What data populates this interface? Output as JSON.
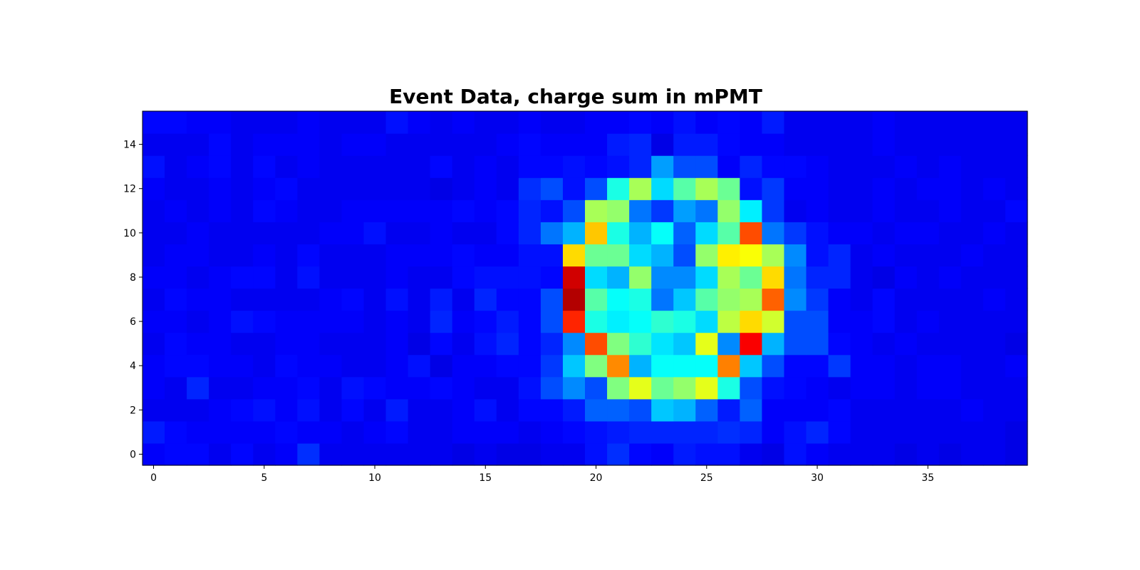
{
  "chart_data": {
    "type": "heatmap",
    "title": "Event Data, charge sum in mPMT",
    "xlabel": "",
    "ylabel": "",
    "x_range": [
      -0.5,
      39.5
    ],
    "y_range": [
      -0.5,
      15.5
    ],
    "y_origin": "bottom",
    "xticks": [
      0,
      5,
      10,
      15,
      20,
      25,
      30,
      35
    ],
    "yticks": [
      0,
      2,
      4,
      6,
      8,
      10,
      12,
      14
    ],
    "colormap": "jet",
    "value_range": [
      0,
      1
    ],
    "grid": false,
    "legend": "none",
    "n_cols": 40,
    "n_rows": 16,
    "z": [
      [
        0.12,
        0.13,
        0.13,
        0.11,
        0.13,
        0.11,
        0.12,
        0.17,
        0.11,
        0.11,
        0.11,
        0.11,
        0.11,
        0.11,
        0.1,
        0.11,
        0.1,
        0.1,
        0.11,
        0.11,
        0.14,
        0.17,
        0.13,
        0.12,
        0.15,
        0.14,
        0.14,
        0.11,
        0.1,
        0.14,
        0.12,
        0.11,
        0.11,
        0.11,
        0.1,
        0.11,
        0.1,
        0.11,
        0.11,
        0.1
      ],
      [
        0.15,
        0.13,
        0.12,
        0.12,
        0.12,
        0.12,
        0.13,
        0.12,
        0.12,
        0.11,
        0.12,
        0.13,
        0.11,
        0.11,
        0.12,
        0.12,
        0.12,
        0.11,
        0.12,
        0.13,
        0.14,
        0.15,
        0.16,
        0.16,
        0.16,
        0.16,
        0.17,
        0.16,
        0.12,
        0.14,
        0.16,
        0.13,
        0.11,
        0.11,
        0.11,
        0.11,
        0.11,
        0.11,
        0.11,
        0.1
      ],
      [
        0.11,
        0.11,
        0.11,
        0.12,
        0.13,
        0.14,
        0.12,
        0.14,
        0.11,
        0.13,
        0.11,
        0.15,
        0.11,
        0.11,
        0.12,
        0.14,
        0.11,
        0.13,
        0.13,
        0.15,
        0.22,
        0.22,
        0.2,
        0.32,
        0.3,
        0.22,
        0.15,
        0.22,
        0.12,
        0.12,
        0.12,
        0.13,
        0.11,
        0.11,
        0.11,
        0.11,
        0.11,
        0.12,
        0.11,
        0.11
      ],
      [
        0.12,
        0.11,
        0.16,
        0.11,
        0.11,
        0.12,
        0.12,
        0.13,
        0.11,
        0.14,
        0.13,
        0.12,
        0.12,
        0.13,
        0.12,
        0.11,
        0.11,
        0.14,
        0.2,
        0.26,
        0.2,
        0.5,
        0.6,
        0.48,
        0.52,
        0.6,
        0.4,
        0.2,
        0.14,
        0.13,
        0.12,
        0.11,
        0.12,
        0.12,
        0.11,
        0.12,
        0.12,
        0.11,
        0.11,
        0.11
      ],
      [
        0.12,
        0.13,
        0.13,
        0.12,
        0.12,
        0.11,
        0.13,
        0.12,
        0.12,
        0.11,
        0.11,
        0.12,
        0.14,
        0.1,
        0.12,
        0.12,
        0.13,
        0.13,
        0.18,
        0.32,
        0.5,
        0.74,
        0.3,
        0.38,
        0.38,
        0.38,
        0.75,
        0.32,
        0.2,
        0.13,
        0.13,
        0.18,
        0.12,
        0.12,
        0.11,
        0.12,
        0.12,
        0.11,
        0.11,
        0.12
      ],
      [
        0.11,
        0.13,
        0.12,
        0.12,
        0.11,
        0.11,
        0.12,
        0.12,
        0.11,
        0.11,
        0.11,
        0.12,
        0.1,
        0.13,
        0.11,
        0.14,
        0.16,
        0.13,
        0.16,
        0.26,
        0.8,
        0.5,
        0.42,
        0.35,
        0.32,
        0.6,
        0.26,
        0.88,
        0.3,
        0.2,
        0.2,
        0.13,
        0.12,
        0.11,
        0.12,
        0.11,
        0.11,
        0.11,
        0.11,
        0.1
      ],
      [
        0.12,
        0.12,
        0.11,
        0.12,
        0.14,
        0.13,
        0.12,
        0.12,
        0.12,
        0.12,
        0.11,
        0.12,
        0.11,
        0.16,
        0.12,
        0.13,
        0.15,
        0.13,
        0.2,
        0.84,
        0.4,
        0.36,
        0.38,
        0.42,
        0.4,
        0.34,
        0.56,
        0.66,
        0.58,
        0.2,
        0.2,
        0.12,
        0.12,
        0.13,
        0.11,
        0.12,
        0.11,
        0.11,
        0.11,
        0.11
      ],
      [
        0.11,
        0.13,
        0.12,
        0.12,
        0.11,
        0.11,
        0.11,
        0.11,
        0.12,
        0.13,
        0.11,
        0.14,
        0.11,
        0.15,
        0.11,
        0.16,
        0.13,
        0.13,
        0.2,
        0.95,
        0.46,
        0.38,
        0.4,
        0.24,
        0.32,
        0.46,
        0.52,
        0.54,
        0.78,
        0.26,
        0.18,
        0.12,
        0.11,
        0.13,
        0.11,
        0.11,
        0.11,
        0.11,
        0.12,
        0.11
      ],
      [
        0.12,
        0.12,
        0.11,
        0.12,
        0.13,
        0.13,
        0.11,
        0.14,
        0.11,
        0.11,
        0.11,
        0.12,
        0.11,
        0.11,
        0.13,
        0.14,
        0.14,
        0.14,
        0.13,
        0.92,
        0.34,
        0.3,
        0.52,
        0.26,
        0.26,
        0.34,
        0.54,
        0.48,
        0.66,
        0.24,
        0.16,
        0.16,
        0.11,
        0.1,
        0.12,
        0.11,
        0.12,
        0.11,
        0.11,
        0.11
      ],
      [
        0.11,
        0.12,
        0.12,
        0.11,
        0.11,
        0.12,
        0.11,
        0.13,
        0.11,
        0.11,
        0.11,
        0.12,
        0.12,
        0.12,
        0.13,
        0.12,
        0.12,
        0.14,
        0.14,
        0.66,
        0.48,
        0.48,
        0.34,
        0.3,
        0.2,
        0.52,
        0.64,
        0.62,
        0.54,
        0.26,
        0.14,
        0.16,
        0.11,
        0.12,
        0.11,
        0.11,
        0.11,
        0.12,
        0.11,
        0.11
      ],
      [
        0.11,
        0.11,
        0.12,
        0.11,
        0.11,
        0.11,
        0.11,
        0.11,
        0.12,
        0.12,
        0.14,
        0.11,
        0.11,
        0.12,
        0.11,
        0.11,
        0.13,
        0.16,
        0.24,
        0.3,
        0.68,
        0.4,
        0.3,
        0.38,
        0.22,
        0.34,
        0.46,
        0.8,
        0.24,
        0.18,
        0.14,
        0.12,
        0.12,
        0.11,
        0.12,
        0.12,
        0.11,
        0.11,
        0.12,
        0.11
      ],
      [
        0.11,
        0.12,
        0.11,
        0.12,
        0.11,
        0.13,
        0.12,
        0.11,
        0.11,
        0.12,
        0.12,
        0.12,
        0.12,
        0.12,
        0.13,
        0.12,
        0.13,
        0.16,
        0.14,
        0.2,
        0.54,
        0.52,
        0.24,
        0.18,
        0.28,
        0.24,
        0.52,
        0.36,
        0.18,
        0.11,
        0.12,
        0.11,
        0.11,
        0.12,
        0.11,
        0.11,
        0.12,
        0.11,
        0.11,
        0.13
      ],
      [
        0.12,
        0.11,
        0.11,
        0.12,
        0.11,
        0.12,
        0.13,
        0.11,
        0.11,
        0.11,
        0.11,
        0.11,
        0.11,
        0.1,
        0.11,
        0.12,
        0.11,
        0.17,
        0.2,
        0.14,
        0.2,
        0.4,
        0.54,
        0.34,
        0.46,
        0.54,
        0.48,
        0.14,
        0.18,
        0.12,
        0.12,
        0.11,
        0.11,
        0.12,
        0.11,
        0.12,
        0.12,
        0.11,
        0.12,
        0.11
      ],
      [
        0.14,
        0.11,
        0.12,
        0.13,
        0.11,
        0.13,
        0.11,
        0.12,
        0.11,
        0.11,
        0.11,
        0.11,
        0.11,
        0.13,
        0.11,
        0.12,
        0.11,
        0.13,
        0.13,
        0.14,
        0.13,
        0.14,
        0.16,
        0.28,
        0.2,
        0.2,
        0.12,
        0.16,
        0.13,
        0.13,
        0.12,
        0.11,
        0.11,
        0.11,
        0.12,
        0.11,
        0.12,
        0.11,
        0.11,
        0.11
      ],
      [
        0.11,
        0.11,
        0.11,
        0.13,
        0.11,
        0.12,
        0.12,
        0.12,
        0.11,
        0.12,
        0.12,
        0.11,
        0.11,
        0.11,
        0.11,
        0.11,
        0.12,
        0.13,
        0.12,
        0.12,
        0.12,
        0.15,
        0.16,
        0.1,
        0.15,
        0.15,
        0.13,
        0.12,
        0.12,
        0.11,
        0.11,
        0.11,
        0.11,
        0.12,
        0.11,
        0.11,
        0.11,
        0.11,
        0.11,
        0.11
      ],
      [
        0.13,
        0.13,
        0.12,
        0.12,
        0.11,
        0.11,
        0.11,
        0.12,
        0.11,
        0.11,
        0.11,
        0.14,
        0.12,
        0.11,
        0.12,
        0.11,
        0.11,
        0.12,
        0.11,
        0.11,
        0.12,
        0.12,
        0.13,
        0.12,
        0.14,
        0.12,
        0.13,
        0.12,
        0.15,
        0.11,
        0.11,
        0.11,
        0.11,
        0.12,
        0.11,
        0.11,
        0.11,
        0.11,
        0.11,
        0.11
      ]
    ]
  }
}
